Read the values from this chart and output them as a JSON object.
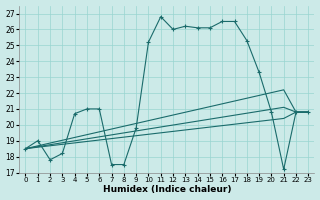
{
  "xlabel": "Humidex (Indice chaleur)",
  "background_color": "#cceae8",
  "grid_color": "#99d5d0",
  "line_color": "#1a6b6b",
  "xlim": [
    -0.5,
    23.5
  ],
  "ylim": [
    17,
    27.5
  ],
  "yticks": [
    17,
    18,
    19,
    20,
    21,
    22,
    23,
    24,
    25,
    26,
    27
  ],
  "xticks": [
    0,
    1,
    2,
    3,
    4,
    5,
    6,
    7,
    8,
    9,
    10,
    11,
    12,
    13,
    14,
    15,
    16,
    17,
    18,
    19,
    20,
    21,
    22,
    23
  ],
  "lines": [
    {
      "x": [
        0,
        1,
        2,
        3,
        4,
        5,
        6,
        7,
        8,
        9,
        10,
        11,
        12,
        13,
        14,
        15,
        16,
        17,
        18,
        19,
        20,
        21,
        22,
        23
      ],
      "y": [
        18.5,
        19.0,
        17.8,
        18.2,
        20.7,
        21.0,
        21.0,
        17.5,
        17.5,
        19.8,
        25.2,
        26.8,
        26.0,
        26.2,
        26.1,
        26.1,
        26.5,
        26.5,
        25.3,
        23.3,
        20.8,
        17.2,
        20.8,
        20.8
      ],
      "marker": "+"
    },
    {
      "x": [
        0,
        21,
        22,
        23
      ],
      "y": [
        18.5,
        22.2,
        20.8,
        20.8
      ],
      "marker": null
    },
    {
      "x": [
        0,
        21,
        22,
        23
      ],
      "y": [
        18.5,
        21.1,
        20.8,
        20.8
      ],
      "marker": null
    },
    {
      "x": [
        0,
        21,
        22,
        23
      ],
      "y": [
        18.5,
        20.4,
        20.8,
        20.8
      ],
      "marker": null
    }
  ]
}
